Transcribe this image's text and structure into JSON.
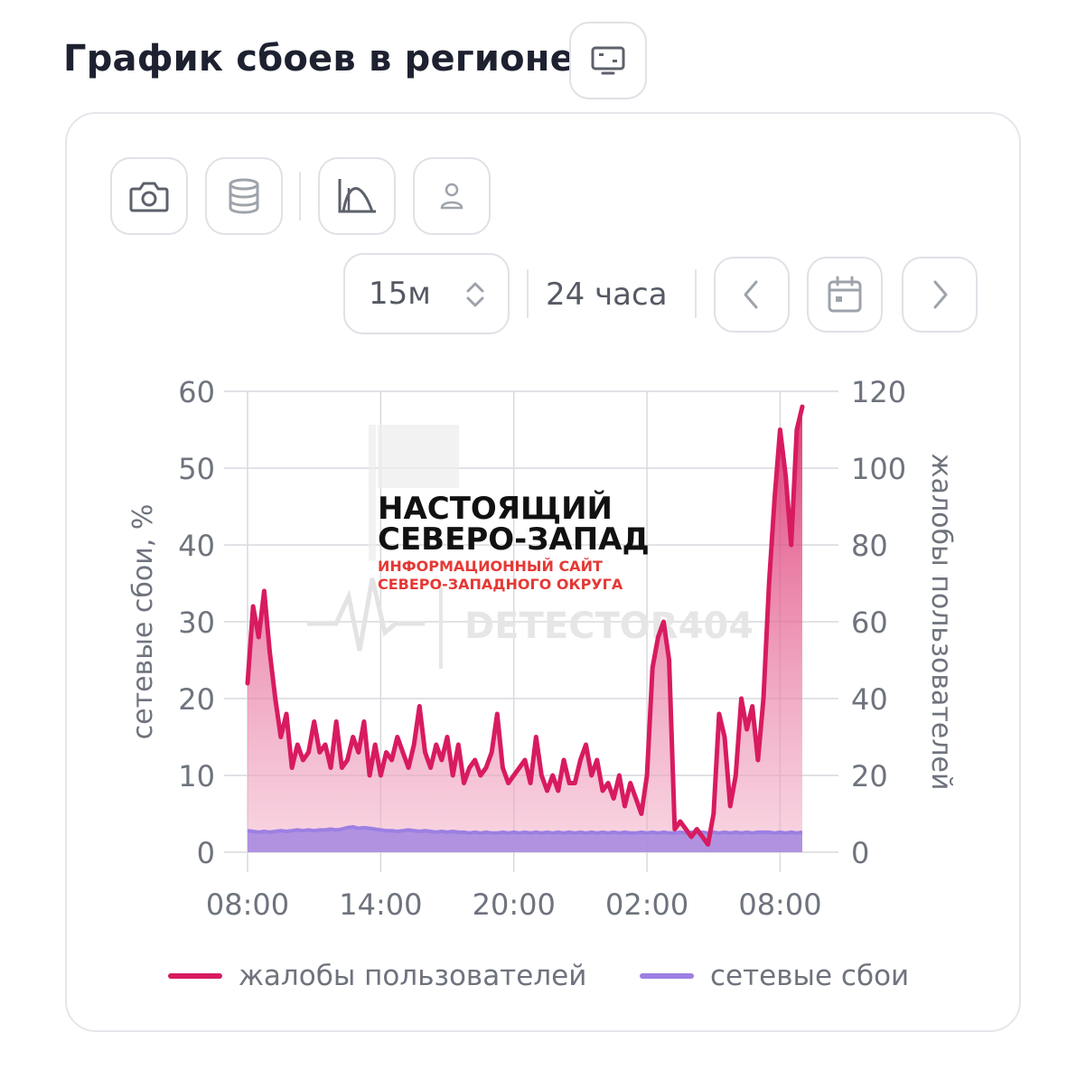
{
  "header": {
    "title": "График сбоев в регионе",
    "monitor_icon": "monitor-icon"
  },
  "toolbar": {
    "camera_icon": "camera-icon",
    "database_icon": "database-icon",
    "chart_curve_icon": "chart-curve-icon",
    "user_icon": "user-icon"
  },
  "controls": {
    "interval_value": "15м",
    "range_label": "24 часа",
    "prev_icon": "chevron-left-icon",
    "calendar_icon": "calendar-icon",
    "next_icon": "chevron-right-icon"
  },
  "watermark": {
    "line1": "НАСТОЯЩИЙ",
    "line2": "СЕВЕРО-ЗАПАД",
    "line3": "ИНФОРМАЦИОННЫЙ САЙТ",
    "line4": "СЕВЕРО-ЗАПАДНОГО ОКРУГА",
    "brand": "DETECTOR404"
  },
  "colors": {
    "complaints": "#d81b60",
    "outages": "#9c7fe3",
    "text": "#1d2130",
    "muted": "#6e737d"
  },
  "chart_data": {
    "type": "area",
    "xlabel": "",
    "ylabel": "сетевые сбои, %",
    "y2label": "жалобы пользователей",
    "ylim": [
      0,
      60
    ],
    "y2lim": [
      0,
      120
    ],
    "yticks": [
      "0",
      "10",
      "20",
      "30",
      "40",
      "50",
      "60"
    ],
    "y2ticks": [
      "0",
      "20",
      "40",
      "60",
      "80",
      "100",
      "120"
    ],
    "xticks": [
      "08:00",
      "14:00",
      "20:00",
      "02:00",
      "08:00"
    ],
    "grid": true,
    "legend_position": "bottom",
    "x_hours_since_0800": [
      0,
      0.25,
      0.5,
      0.75,
      1,
      1.25,
      1.5,
      1.75,
      2,
      2.25,
      2.5,
      2.75,
      3,
      3.25,
      3.5,
      3.75,
      4,
      4.25,
      4.5,
      4.75,
      5,
      5.25,
      5.5,
      5.75,
      6,
      6.25,
      6.5,
      6.75,
      7,
      7.25,
      7.5,
      7.75,
      8,
      8.25,
      8.5,
      8.75,
      9,
      9.25,
      9.5,
      9.75,
      10,
      10.25,
      10.5,
      10.75,
      11,
      11.25,
      11.5,
      11.75,
      12,
      12.25,
      12.5,
      12.75,
      13,
      13.25,
      13.5,
      13.75,
      14,
      14.25,
      14.5,
      14.75,
      15,
      15.25,
      15.5,
      15.75,
      16,
      16.25,
      16.5,
      16.75,
      17,
      17.25,
      17.5,
      17.75,
      18,
      18.25,
      18.5,
      18.75,
      19,
      19.25,
      19.5,
      19.75,
      20,
      20.25,
      20.5,
      20.75,
      21,
      21.25,
      21.5,
      21.75,
      22,
      22.25,
      22.5,
      22.75,
      23,
      23.25,
      23.5,
      23.75,
      24,
      24.25,
      24.5,
      24.75,
      25
    ],
    "series": [
      {
        "name": "жалобы пользователей",
        "axis": "right",
        "values": [
          44,
          64,
          56,
          68,
          52,
          40,
          30,
          36,
          22,
          28,
          24,
          26,
          34,
          26,
          28,
          22,
          34,
          22,
          24,
          30,
          26,
          34,
          20,
          28,
          20,
          26,
          24,
          30,
          26,
          22,
          28,
          38,
          26,
          22,
          28,
          24,
          30,
          20,
          28,
          18,
          22,
          24,
          20,
          22,
          26,
          36,
          22,
          18,
          20,
          22,
          24,
          18,
          30,
          20,
          16,
          20,
          16,
          24,
          18,
          18,
          24,
          28,
          20,
          24,
          16,
          18,
          14,
          20,
          12,
          18,
          14,
          10,
          20,
          48,
          56,
          60,
          50,
          6,
          8,
          6,
          4,
          6,
          4,
          2,
          10,
          36,
          30,
          12,
          20,
          40,
          32,
          38,
          24,
          40,
          70,
          92,
          110,
          98,
          80,
          110,
          116
        ]
      },
      {
        "name": "сетевые сбои",
        "axis": "left",
        "values": [
          2.8,
          2.7,
          2.6,
          2.7,
          2.6,
          2.7,
          2.8,
          2.7,
          2.8,
          2.9,
          2.8,
          2.9,
          2.8,
          2.9,
          2.9,
          3.0,
          2.9,
          3.0,
          3.2,
          3.3,
          3.1,
          3.2,
          3.1,
          3.0,
          2.9,
          2.8,
          2.8,
          2.7,
          2.8,
          2.9,
          2.8,
          2.7,
          2.8,
          2.7,
          2.6,
          2.7,
          2.6,
          2.7,
          2.6,
          2.6,
          2.5,
          2.6,
          2.5,
          2.6,
          2.5,
          2.5,
          2.6,
          2.5,
          2.6,
          2.5,
          2.6,
          2.5,
          2.6,
          2.5,
          2.6,
          2.5,
          2.6,
          2.5,
          2.6,
          2.5,
          2.6,
          2.5,
          2.6,
          2.5,
          2.6,
          2.5,
          2.6,
          2.5,
          2.6,
          2.5,
          2.5,
          2.6,
          2.5,
          2.6,
          2.5,
          2.6,
          2.5,
          2.5,
          2.6,
          2.5,
          2.6,
          2.5,
          2.6,
          2.5,
          2.6,
          2.5,
          2.6,
          2.5,
          2.6,
          2.5,
          2.6,
          2.5,
          2.6,
          2.6,
          2.6,
          2.5,
          2.6,
          2.5,
          2.6,
          2.5,
          2.6
        ]
      }
    ]
  }
}
